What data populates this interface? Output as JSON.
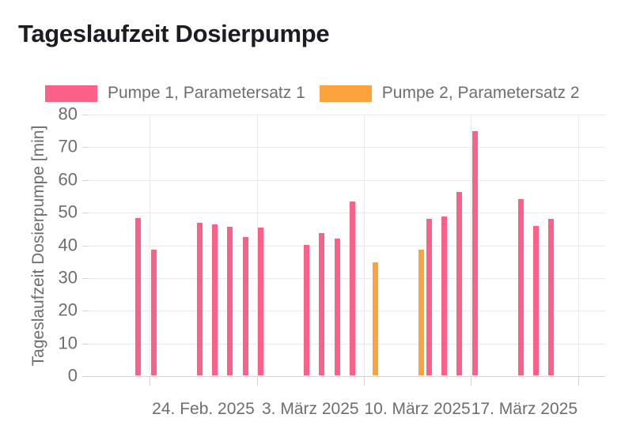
{
  "title": "Tageslaufzeit Dosierpumpe",
  "chart_data": {
    "type": "bar",
    "title": "Tageslaufzeit Dosierpumpe",
    "xlabel": "",
    "ylabel": "Tageslaufzeit Dosierpumpe [min]",
    "grid": true,
    "legend_position": "top",
    "y_axis": {
      "min": 0,
      "max": 80,
      "step": 10,
      "tick_labels": [
        "0",
        "10",
        "20",
        "30",
        "40",
        "50",
        "60",
        "70",
        "80"
      ]
    },
    "x_axis": {
      "start_date": "20.02.2025",
      "gridline_dates": [
        "24.02.2025",
        "03.03.2025",
        "10.03.2025",
        "17.03.2025",
        "24.03.2025"
      ],
      "ticks": [
        {
          "label": "24. Feb. 2025",
          "period_start": "24.02.2025"
        },
        {
          "label": "3. März 2025",
          "period_start": "03.03.2025"
        },
        {
          "label": "10. März 2025",
          "period_start": "10.03.2025"
        },
        {
          "label": "17. März 2025",
          "period_start": "17.03.2025"
        }
      ]
    },
    "series": [
      {
        "name": "Pumpe 1, Parametersatz 1",
        "color": "#fa6088",
        "points": [
          {
            "date": "23.02.2025",
            "value": 48.0
          },
          {
            "date": "24.02.2025",
            "value": 38.4
          },
          {
            "date": "27.02.2025",
            "value": 46.7
          },
          {
            "date": "28.02.2025",
            "value": 46.2
          },
          {
            "date": "01.03.2025",
            "value": 45.4
          },
          {
            "date": "02.03.2025",
            "value": 42.3
          },
          {
            "date": "03.03.2025",
            "value": 45.1
          },
          {
            "date": "06.03.2025",
            "value": 39.9
          },
          {
            "date": "07.03.2025",
            "value": 43.5
          },
          {
            "date": "08.03.2025",
            "value": 41.7
          },
          {
            "date": "09.03.2025",
            "value": 53.2
          },
          {
            "date": "14.03.2025",
            "value": 47.9
          },
          {
            "date": "15.03.2025",
            "value": 48.6
          },
          {
            "date": "16.03.2025",
            "value": 56.1
          },
          {
            "date": "17.03.2025",
            "value": 74.7
          },
          {
            "date": "20.03.2025",
            "value": 53.8
          },
          {
            "date": "21.03.2025",
            "value": 45.6
          },
          {
            "date": "22.03.2025",
            "value": 47.9
          }
        ]
      },
      {
        "name": "Pumpe 2, Parametersatz 2",
        "color": "#fca33d",
        "points": [
          {
            "date": "10.03.2025",
            "value": 34.6
          },
          {
            "date": "13.03.2025",
            "value": 38.5
          }
        ]
      }
    ]
  }
}
